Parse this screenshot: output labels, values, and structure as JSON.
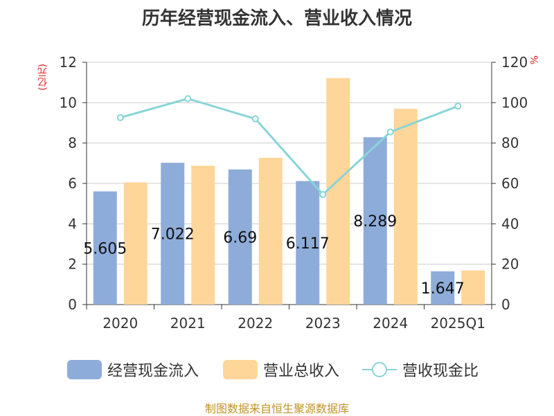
{
  "title": "历年经营现金流入、营业收入情况",
  "source": "制图数据来自恒生聚源数据库",
  "legend": {
    "cash_inflow": "经营现金流入",
    "revenue": "营业总收入",
    "ratio": "营收现金比"
  },
  "units": {
    "left": "(亿元)",
    "right": "%"
  },
  "colors": {
    "cash_inflow": "#8eacd9",
    "revenue": "#ffd699",
    "ratio": "#88d4d8",
    "grid": "#cccccc",
    "axis": "#333333",
    "unit": "#e02020",
    "source": "#c09228"
  },
  "chart_data": {
    "type": "bar",
    "categories": [
      "2020",
      "2021",
      "2022",
      "2023",
      "2024",
      "2025Q1"
    ],
    "series": [
      {
        "name": "经营现金流入",
        "type": "bar",
        "axis": "left",
        "values": [
          5.605,
          7.022,
          6.69,
          6.117,
          8.289,
          1.647
        ],
        "labels": [
          "5.605",
          "7.022",
          "6.69",
          "6.117",
          "8.289",
          "1.647"
        ]
      },
      {
        "name": "营业总收入",
        "type": "bar",
        "axis": "left",
        "values": [
          6.05,
          6.88,
          7.27,
          11.22,
          9.7,
          1.69
        ]
      },
      {
        "name": "营收现金比",
        "type": "line",
        "axis": "right",
        "values": [
          92.6,
          102.0,
          92.0,
          54.5,
          85.5,
          98.3
        ]
      }
    ],
    "y_left": {
      "min": 0,
      "max": 12,
      "ticks": [
        0,
        2,
        4,
        6,
        8,
        10,
        12
      ]
    },
    "y_right": {
      "min": 0,
      "max": 120,
      "ticks": [
        0,
        20,
        40,
        60,
        80,
        100,
        120
      ]
    },
    "grid": true,
    "legend_position": "bottom"
  }
}
